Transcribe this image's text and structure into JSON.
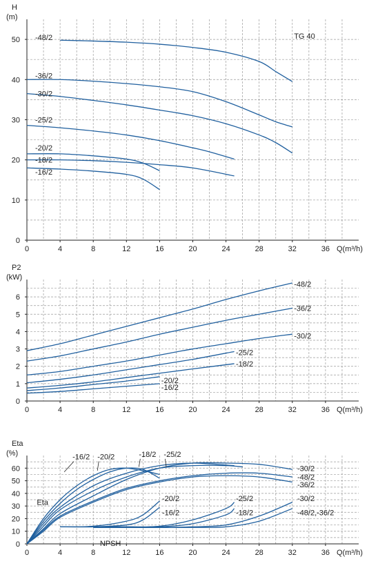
{
  "chart_data": [
    {
      "type": "line",
      "ylabel": "H",
      "yunit": "(m)",
      "xlabel": "Q(m³/h)",
      "model": "TG 40",
      "xlim": [
        0,
        40
      ],
      "ylim": [
        0,
        55
      ],
      "xticks": [
        "0",
        "4",
        "8",
        "12",
        "16",
        "20",
        "24",
        "28",
        "32",
        "36"
      ],
      "yticks": [
        "0",
        "10",
        "20",
        "30",
        "40",
        "50"
      ],
      "grid": true,
      "series": [
        {
          "name": "-48/2",
          "x": [
            4,
            8,
            12,
            16,
            20,
            24,
            28,
            30,
            32
          ],
          "y": [
            49.8,
            49.6,
            49.3,
            48.8,
            48,
            46.8,
            44.5,
            42,
            39.5
          ],
          "label_at": [
            1,
            50.5
          ]
        },
        {
          "name": "-36/2",
          "x": [
            0,
            4,
            8,
            12,
            16,
            20,
            24,
            28,
            30,
            32
          ],
          "y": [
            40,
            40,
            39.6,
            39,
            38.2,
            37,
            34.5,
            31.2,
            29.5,
            28.2
          ],
          "label_at": [
            1,
            41
          ]
        },
        {
          "name": "-30/2",
          "x": [
            0,
            4,
            8,
            12,
            16,
            20,
            24,
            28,
            30,
            32
          ],
          "y": [
            36.5,
            35.8,
            34.8,
            33.7,
            32.4,
            31,
            29,
            26.2,
            24.3,
            21.7
          ],
          "label_at": [
            1,
            36.5
          ]
        },
        {
          "name": "-25/2",
          "x": [
            0,
            4,
            8,
            12,
            16,
            20,
            22,
            25
          ],
          "y": [
            28.6,
            28,
            27.2,
            26.2,
            24.8,
            23,
            22,
            20.2
          ],
          "label_at": [
            1,
            30
          ]
        },
        {
          "name": "-20/2",
          "x": [
            0,
            4,
            8,
            12,
            14,
            16
          ],
          "y": [
            21.5,
            21.5,
            21,
            20.2,
            19.2,
            17.3
          ],
          "label_at": [
            1,
            23
          ]
        },
        {
          "name": "-18/2",
          "x": [
            0,
            4,
            8,
            12,
            16,
            20,
            25
          ],
          "y": [
            20,
            20,
            19.8,
            19.4,
            18.8,
            18,
            16
          ],
          "label_at": [
            1,
            20
          ]
        },
        {
          "name": "-16/2",
          "x": [
            0,
            4,
            8,
            12,
            14,
            16
          ],
          "y": [
            18,
            17.7,
            17.2,
            16.4,
            15.2,
            12.6
          ],
          "label_at": [
            1,
            17
          ]
        }
      ]
    },
    {
      "type": "line",
      "ylabel": "P2",
      "yunit": "(kW)",
      "xlabel": "Q(m³/h)",
      "xlim": [
        0,
        40
      ],
      "ylim": [
        0,
        7
      ],
      "xticks": [
        "0",
        "4",
        "8",
        "12",
        "16",
        "20",
        "24",
        "28",
        "32",
        "36"
      ],
      "yticks": [
        "0",
        "1",
        "2",
        "3",
        "4",
        "5",
        "6"
      ],
      "grid": true,
      "series": [
        {
          "name": "-48/2",
          "x": [
            0,
            4,
            8,
            12,
            16,
            20,
            24,
            28,
            32
          ],
          "y": [
            2.9,
            3.3,
            3.8,
            4.3,
            4.8,
            5.3,
            5.85,
            6.35,
            6.8
          ],
          "label_at": [
            32.2,
            6.75
          ]
        },
        {
          "name": "-36/2",
          "x": [
            0,
            4,
            8,
            12,
            16,
            20,
            24,
            28,
            32
          ],
          "y": [
            2.3,
            2.6,
            3.0,
            3.4,
            3.85,
            4.25,
            4.65,
            5.0,
            5.35
          ],
          "label_at": [
            32.2,
            5.35
          ]
        },
        {
          "name": "-30/2",
          "x": [
            0,
            4,
            8,
            12,
            16,
            20,
            24,
            28,
            32
          ],
          "y": [
            1.5,
            1.7,
            2.0,
            2.3,
            2.65,
            3.0,
            3.3,
            3.6,
            3.85
          ],
          "label_at": [
            32.2,
            3.75
          ]
        },
        {
          "name": "-25/2",
          "x": [
            0,
            4,
            8,
            12,
            16,
            20,
            25
          ],
          "y": [
            1.05,
            1.25,
            1.5,
            1.8,
            2.1,
            2.4,
            2.85
          ],
          "label_at": [
            25.2,
            2.8
          ]
        },
        {
          "name": "-18/2",
          "x": [
            0,
            4,
            8,
            12,
            16,
            20,
            25
          ],
          "y": [
            0.75,
            0.9,
            1.1,
            1.35,
            1.6,
            1.85,
            2.15
          ],
          "label_at": [
            25.2,
            2.15
          ]
        },
        {
          "name": "-20/2",
          "x": [
            0,
            4,
            8,
            12,
            16
          ],
          "y": [
            0.6,
            0.75,
            0.95,
            1.15,
            1.4
          ],
          "label_at": [
            16.2,
            1.2
          ]
        },
        {
          "name": "-16/2",
          "x": [
            0,
            4,
            8,
            12,
            16
          ],
          "y": [
            0.45,
            0.55,
            0.7,
            0.85,
            1.0
          ],
          "label_at": [
            16.2,
            0.8
          ]
        }
      ]
    },
    {
      "type": "line",
      "ylabel": "Eta",
      "yunit": "(%)",
      "xlabel": "Q(m³/h)",
      "xlim": [
        0,
        40
      ],
      "ylim": [
        0,
        70
      ],
      "xticks": [
        "0",
        "4",
        "8",
        "12",
        "16",
        "20",
        "24",
        "28",
        "32",
        "36"
      ],
      "yticks": [
        "0",
        "10",
        "20",
        "30",
        "40",
        "50",
        "60"
      ],
      "grid": true,
      "eta_label": "Eta",
      "npsh_label": "NPSH",
      "eta_series": [
        {
          "name": "-16/2",
          "x": [
            0,
            2,
            4,
            6,
            8,
            10,
            12,
            14,
            16
          ],
          "y": [
            0,
            20,
            35,
            46,
            54,
            59,
            60,
            58,
            55
          ]
        },
        {
          "name": "-20/2",
          "x": [
            0,
            2,
            4,
            6,
            8,
            10,
            12,
            14,
            16
          ],
          "y": [
            0,
            18,
            32,
            43,
            51,
            57,
            60,
            59,
            52
          ]
        },
        {
          "name": "-18/2",
          "x": [
            0,
            2,
            4,
            8,
            12,
            16,
            20,
            25
          ],
          "y": [
            0,
            16,
            29,
            46,
            56,
            62,
            64,
            62
          ]
        },
        {
          "name": "-25/2",
          "x": [
            0,
            2,
            4,
            8,
            12,
            16,
            20,
            24,
            26
          ],
          "y": [
            0,
            14,
            27,
            42,
            53,
            60,
            62,
            62,
            61
          ]
        },
        {
          "name": "-30/2",
          "x": [
            0,
            2,
            4,
            8,
            12,
            16,
            20,
            24,
            28,
            32
          ],
          "y": [
            0,
            12,
            24,
            38,
            51,
            60,
            64,
            64,
            63,
            59
          ]
        },
        {
          "name": "-48/2",
          "x": [
            0,
            2,
            4,
            8,
            12,
            16,
            20,
            24,
            28,
            32
          ],
          "y": [
            0,
            11,
            22,
            34,
            44,
            50,
            54,
            56,
            56,
            53
          ]
        },
        {
          "name": "-36/2",
          "x": [
            0,
            2,
            4,
            8,
            12,
            16,
            20,
            24,
            28,
            32
          ],
          "y": [
            0,
            10,
            21,
            33,
            43,
            49,
            53,
            54,
            53,
            49
          ]
        }
      ],
      "npsh_series": [
        {
          "name": "-20/2",
          "x": [
            4,
            8,
            12,
            14,
            16
          ],
          "y": [
            13.5,
            14,
            18,
            23,
            34
          ]
        },
        {
          "name": "-16/2",
          "x": [
            4,
            8,
            12,
            14,
            16
          ],
          "y": [
            13.5,
            13.5,
            15,
            19,
            29
          ]
        },
        {
          "name": "-25/2",
          "x": [
            8,
            12,
            16,
            20,
            24,
            25
          ],
          "y": [
            13.5,
            13.5,
            14,
            19,
            28,
            33
          ]
        },
        {
          "name": "-18/2",
          "x": [
            8,
            12,
            16,
            20,
            24,
            25
          ],
          "y": [
            13.5,
            13.5,
            13.5,
            16,
            23,
            28
          ]
        },
        {
          "name": "-30/2",
          "x": [
            8,
            12,
            16,
            20,
            24,
            28,
            32
          ],
          "y": [
            13,
            13,
            13,
            13.5,
            15,
            22,
            33
          ]
        },
        {
          "name": "-48/2,-36/2",
          "x": [
            8,
            12,
            16,
            20,
            24,
            28,
            32
          ],
          "y": [
            13,
            13,
            13,
            13,
            13.5,
            18,
            28
          ]
        }
      ],
      "top_labels": [
        {
          "text": "-16/2",
          "tx": 5.5,
          "ty": 67,
          "ax": 4.5,
          "ay": 57
        },
        {
          "text": "-20/2",
          "tx": 8.5,
          "ty": 67,
          "ax": 8.5,
          "ay": 58
        },
        {
          "text": "-18/2",
          "tx": 13.5,
          "ty": 69,
          "ax": 13.5,
          "ay": 61
        },
        {
          "text": "-25/2",
          "tx": 16.5,
          "ty": 69,
          "ax": 16.8,
          "ay": 61
        }
      ],
      "right_labels": [
        {
          "text": "-30/2",
          "tx": 32.6,
          "ty": 60
        },
        {
          "text": "-48/2",
          "tx": 32.6,
          "ty": 53
        },
        {
          "text": "-36/2",
          "tx": 32.6,
          "ty": 47
        },
        {
          "text": "-20/2",
          "tx": 16.3,
          "ty": 36
        },
        {
          "text": "-16/2",
          "tx": 16.3,
          "ty": 25
        },
        {
          "text": "-25/2",
          "tx": 25.2,
          "ty": 36
        },
        {
          "text": "-18/2",
          "tx": 25.2,
          "ty": 25
        },
        {
          "text": "-30/2",
          "tx": 32.6,
          "ty": 36
        },
        {
          "text": "-48/2,-36/2",
          "tx": 32.6,
          "ty": 25
        }
      ]
    }
  ]
}
